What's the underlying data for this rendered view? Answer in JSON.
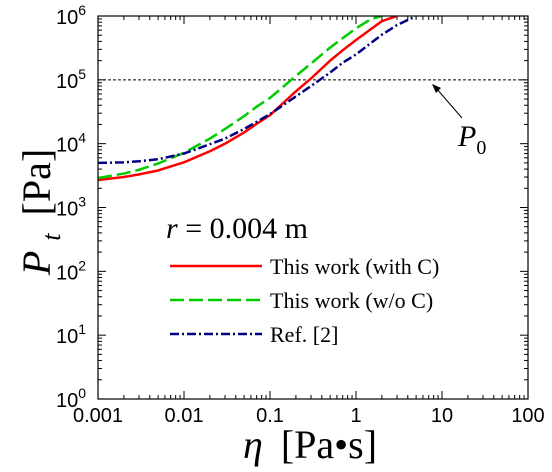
{
  "chart_data": {
    "type": "line",
    "x_scale": "log",
    "y_scale": "log",
    "xlim": [
      0.001,
      100
    ],
    "ylim": [
      1,
      1000000
    ],
    "xlabel": {
      "symbol": "η",
      "unit": "[Pa•s]"
    },
    "ylabel": {
      "symbol": "P",
      "subscript": "t",
      "unit": "[Pa]"
    },
    "x_ticks": [
      "0.001",
      "0.01",
      "0.1",
      "1",
      "10",
      "100"
    ],
    "y_ticks": [
      {
        "base": "10",
        "exp": "0",
        "value": 1
      },
      {
        "base": "10",
        "exp": "1",
        "value": 10
      },
      {
        "base": "10",
        "exp": "2",
        "value": 100
      },
      {
        "base": "10",
        "exp": "3",
        "value": 1000
      },
      {
        "base": "10",
        "exp": "4",
        "value": 10000
      },
      {
        "base": "10",
        "exp": "5",
        "value": 100000
      },
      {
        "base": "10",
        "exp": "6",
        "value": 1000000
      }
    ],
    "annotation": {
      "italic": "r",
      "rest": " = 0.004 m"
    },
    "reference_line": {
      "label": "P",
      "subscript": "0",
      "y": 100000,
      "style": "dashed",
      "color": "#000000"
    },
    "legend_position": "center-right",
    "series": [
      {
        "name": "This work (with C)",
        "color": "#ff0000",
        "dash": "solid",
        "x": [
          0.001,
          0.002,
          0.003,
          0.005,
          0.007,
          0.01,
          0.02,
          0.03,
          0.05,
          0.07,
          0.1,
          0.2,
          0.3,
          0.5,
          0.7,
          1,
          2,
          3
        ],
        "y": [
          2700,
          3000,
          3300,
          3800,
          4400,
          5100,
          7600,
          10000,
          15000,
          20500,
          28000,
          66000,
          105000,
          200000,
          290000,
          420000,
          830000,
          1000000
        ]
      },
      {
        "name": "This work (w/o  C)",
        "color": "#00cc00",
        "dash": "dashed",
        "x": [
          0.001,
          0.002,
          0.003,
          0.005,
          0.007,
          0.01,
          0.02,
          0.03,
          0.05,
          0.07,
          0.1,
          0.2,
          0.3,
          0.5,
          0.7,
          1,
          1.5,
          2
        ],
        "y": [
          2900,
          3400,
          3900,
          4900,
          5900,
          7200,
          12000,
          17000,
          27000,
          38000,
          52000,
          115000,
          180000,
          320000,
          450000,
          640000,
          900000,
          1000000
        ]
      },
      {
        "name": "Ref. [2]",
        "color": "#000080",
        "dash": "dashdot",
        "x": [
          0.001,
          0.002,
          0.003,
          0.005,
          0.007,
          0.01,
          0.02,
          0.03,
          0.05,
          0.07,
          0.1,
          0.2,
          0.3,
          0.5,
          0.7,
          1,
          2,
          3,
          5
        ],
        "y": [
          5000,
          5100,
          5300,
          5700,
          6300,
          7000,
          9800,
          12000,
          17000,
          22000,
          29000,
          55000,
          80000,
          130000,
          185000,
          250000,
          510000,
          720000,
          1000000
        ]
      }
    ]
  }
}
